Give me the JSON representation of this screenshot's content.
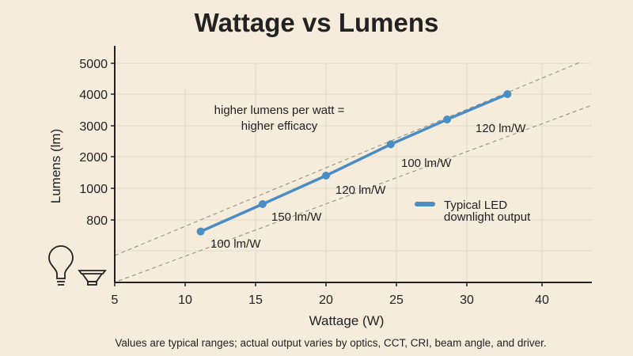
{
  "chart_data": {
    "type": "line",
    "title": "Wattage vs Lumens",
    "xlabel": "Wattage (W)",
    "ylabel": "Lumens (lm)",
    "x_ticks": [
      5,
      10,
      15,
      20,
      25,
      30,
      40
    ],
    "y_ticks": [
      800,
      1000,
      2000,
      3000,
      4000,
      5000
    ],
    "grid": true,
    "legend_placement": "right",
    "series": [
      {
        "name": "Typical LED downlight output",
        "color": "#4a8cc4",
        "x": [
          11.1,
          15.5,
          20,
          24.6,
          28.6,
          35.4
        ],
        "y": [
          650,
          900,
          1400,
          2400,
          3200,
          4000
        ]
      }
    ],
    "legend": {
      "line1": "Typical LED",
      "line2": "downlight output"
    },
    "annotations": {
      "efficacy_note_line1": "higher lumens per watt =",
      "efficacy_note_line2": "higher efficacy",
      "labels": [
        "100 lm/W",
        "150 lm/W",
        "120 lm/W",
        "100 lm/W",
        "120 lm/W"
      ]
    },
    "reference_line_style": "dashed gray",
    "footnote": "Values are typical ranges; actual output varies by optics, CCT, CRI, beam angle, and driver.",
    "icons": [
      "light-bulb-icon",
      "downlight-icon"
    ]
  }
}
